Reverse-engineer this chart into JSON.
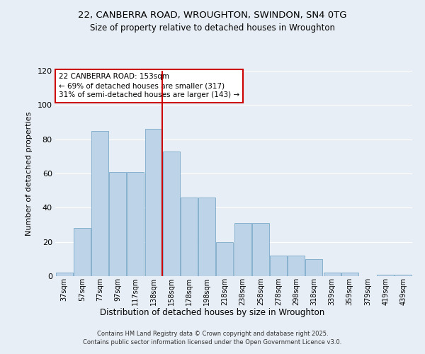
{
  "title": "22, CANBERRA ROAD, WROUGHTON, SWINDON, SN4 0TG",
  "subtitle": "Size of property relative to detached houses in Wroughton",
  "xlabel": "Distribution of detached houses by size in Wroughton",
  "ylabel": "Number of detached properties",
  "categories": [
    "37sqm",
    "57sqm",
    "77sqm",
    "97sqm",
    "117sqm",
    "138sqm",
    "158sqm",
    "178sqm",
    "198sqm",
    "218sqm",
    "238sqm",
    "258sqm",
    "278sqm",
    "298sqm",
    "318sqm",
    "339sqm",
    "359sqm",
    "379sqm",
    "419sqm",
    "439sqm"
  ],
  "values": [
    2,
    28,
    85,
    61,
    61,
    86,
    73,
    46,
    46,
    20,
    31,
    31,
    12,
    12,
    10,
    2,
    2,
    0,
    1,
    1
  ],
  "bar_color": "#bdd4e8",
  "bar_edge_color": "#7aaac8",
  "vline_color": "#cc0000",
  "vline_position": 5.5,
  "annotation_title": "22 CANBERRA ROAD: 153sqm",
  "annotation_line1": "← 69% of detached houses are smaller (317)",
  "annotation_line2": "31% of semi-detached houses are larger (143) →",
  "annotation_box_facecolor": "#ffffff",
  "annotation_box_edgecolor": "#cc0000",
  "ylim": [
    0,
    120
  ],
  "yticks": [
    0,
    20,
    40,
    60,
    80,
    100,
    120
  ],
  "background_color": "#e8eef5",
  "grid_color": "#ffffff",
  "footer1": "Contains HM Land Registry data © Crown copyright and database right 2025.",
  "footer2": "Contains public sector information licensed under the Open Government Licence v3.0."
}
